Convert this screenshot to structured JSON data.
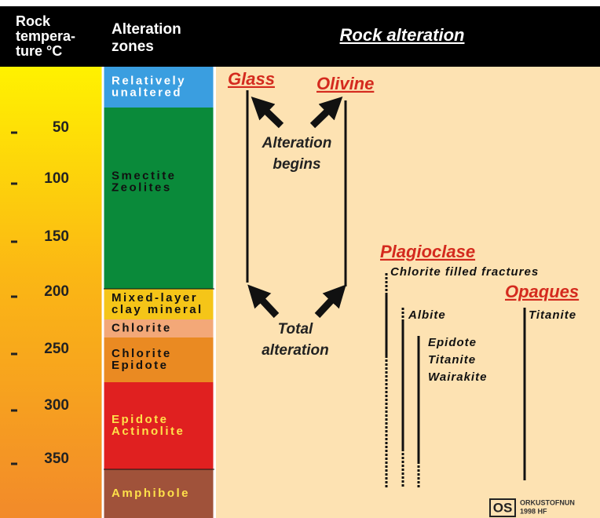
{
  "header": {
    "temperature": [
      "Rock",
      "tempera-",
      "ture °C"
    ],
    "zones": [
      "Alteration",
      "zones"
    ],
    "title": "Rock alteration"
  },
  "temperatures": [
    50,
    100,
    150,
    200,
    250,
    300,
    350
  ],
  "zones": [
    {
      "lines": [
        "Relatively",
        "unaltered"
      ]
    },
    {
      "lines": [
        "Smectite",
        "Zeolites"
      ]
    },
    {
      "lines": [
        "Mixed-layer",
        "clay mineral"
      ]
    },
    {
      "lines": [
        "Chlorite"
      ]
    },
    {
      "lines": [
        "Chlorite",
        "Epidote"
      ]
    },
    {
      "lines": [
        "Epidote",
        "Actinolite"
      ]
    },
    {
      "lines": [
        "Amphibole"
      ]
    }
  ],
  "alteration": {
    "glass": "Glass",
    "olivine": "Olivine",
    "begins": [
      "Alteration",
      "begins"
    ],
    "total": [
      "Total",
      "alteration"
    ],
    "plagioclase": "Plagioclase",
    "fractures": "Chlorite filled fractures",
    "albite": "Albite",
    "secondary": [
      "Epidote",
      "Titanite",
      "Wairakite"
    ],
    "opaques": "Opaques",
    "titanite": "Titanite"
  },
  "logo": {
    "mark": "OS",
    "lines": [
      "ORKUSTOFNUN",
      "1998 HF"
    ]
  }
}
